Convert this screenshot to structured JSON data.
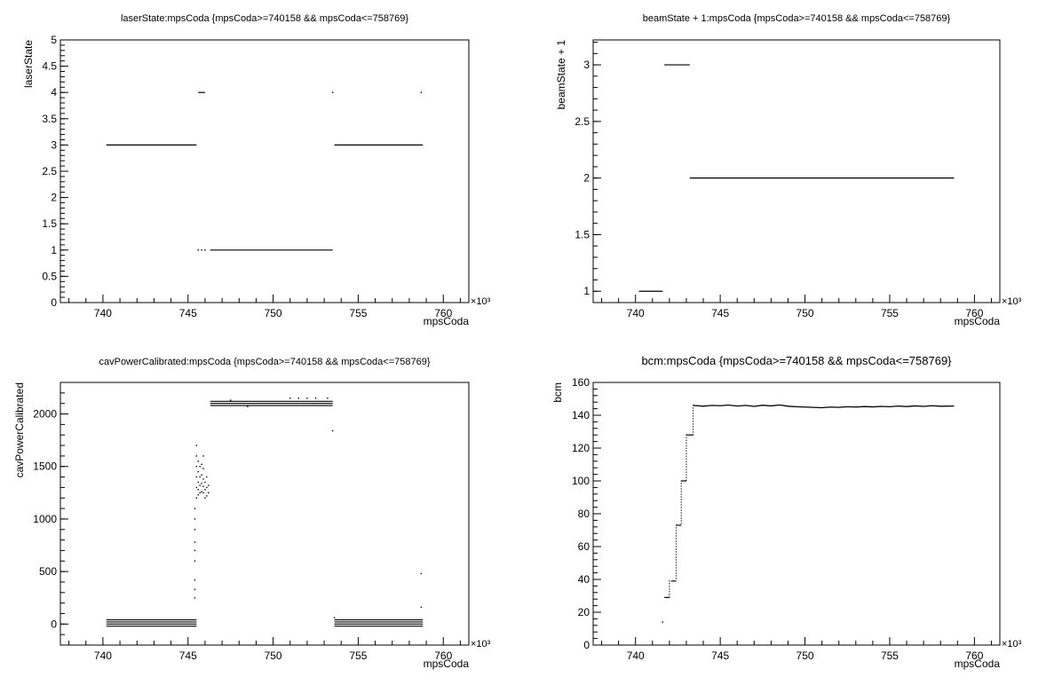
{
  "chart_data": [
    {
      "type": "scatter",
      "title": "laserState:mpsCoda {mpsCoda>=740158 && mpsCoda<=758769}",
      "xlabel": "mpsCoda",
      "ylabel": "laserState",
      "x_multiplier_label": "×10³",
      "xlim": [
        737.5,
        761.5
      ],
      "ylim": [
        0,
        5
      ],
      "xticks": [
        "740",
        "745",
        "750",
        "755",
        "760"
      ],
      "yticks": [
        "0",
        "0.5",
        "1",
        "1.5",
        "2",
        "2.5",
        "3",
        "3.5",
        "4",
        "4.5",
        "5"
      ],
      "segments": [
        {
          "x0": 740.2,
          "x1": 745.5,
          "y": 3
        },
        {
          "x0": 745.6,
          "x1": 746.0,
          "y": 4
        },
        {
          "x0": 746.3,
          "x1": 753.5,
          "y": 1
        },
        {
          "x0": 753.6,
          "x1": 758.8,
          "y": 3
        }
      ],
      "points": [
        {
          "x": 745.6,
          "y": 1
        },
        {
          "x": 745.8,
          "y": 1
        },
        {
          "x": 746.0,
          "y": 1
        },
        {
          "x": 753.5,
          "y": 4
        },
        {
          "x": 758.7,
          "y": 4
        }
      ]
    },
    {
      "type": "scatter",
      "title": "beamState + 1:mpsCoda {mpsCoda>=740158 && mpsCoda<=758769}",
      "xlabel": "mpsCoda",
      "ylabel": "beamState + 1",
      "x_multiplier_label": "×10³",
      "xlim": [
        737.5,
        761.5
      ],
      "ylim": [
        0.9,
        3.22
      ],
      "xticks": [
        "740",
        "745",
        "750",
        "755",
        "760"
      ],
      "yticks": [
        "1",
        "1.5",
        "2",
        "2.5",
        "3"
      ],
      "segments": [
        {
          "x0": 740.2,
          "x1": 741.6,
          "y": 1
        },
        {
          "x0": 741.7,
          "x1": 743.2,
          "y": 3
        },
        {
          "x0": 743.2,
          "x1": 758.8,
          "y": 2
        }
      ],
      "points": []
    },
    {
      "type": "scatter",
      "title": "cavPowerCalibrated:mpsCoda {mpsCoda>=740158 && mpsCoda<=758769}",
      "xlabel": "mpsCoda",
      "ylabel": "cavPowerCalibrated",
      "x_multiplier_label": "×10³",
      "xlim": [
        737.5,
        761.5
      ],
      "ylim": [
        -200,
        2300
      ],
      "xticks": [
        "740",
        "745",
        "750",
        "755",
        "760"
      ],
      "yticks": [
        "0",
        "500",
        "1000",
        "1500",
        "2000"
      ],
      "segments": [
        {
          "x0": 740.2,
          "x1": 745.5,
          "y": 40
        },
        {
          "x0": 740.2,
          "x1": 745.5,
          "y": 20
        },
        {
          "x0": 740.2,
          "x1": 745.5,
          "y": 0
        },
        {
          "x0": 740.2,
          "x1": 745.5,
          "y": -20
        },
        {
          "x0": 746.3,
          "x1": 753.5,
          "y": 2120
        },
        {
          "x0": 746.3,
          "x1": 753.5,
          "y": 2100
        },
        {
          "x0": 746.3,
          "x1": 753.5,
          "y": 2080
        },
        {
          "x0": 753.6,
          "x1": 758.8,
          "y": 40
        },
        {
          "x0": 753.6,
          "x1": 758.8,
          "y": 20
        },
        {
          "x0": 753.6,
          "x1": 758.8,
          "y": 0
        },
        {
          "x0": 753.6,
          "x1": 758.8,
          "y": -20
        }
      ],
      "points": [
        {
          "x": 745.4,
          "y": 250
        },
        {
          "x": 745.4,
          "y": 330
        },
        {
          "x": 745.4,
          "y": 420
        },
        {
          "x": 745.4,
          "y": 600
        },
        {
          "x": 745.4,
          "y": 700
        },
        {
          "x": 745.4,
          "y": 780
        },
        {
          "x": 745.4,
          "y": 900
        },
        {
          "x": 745.4,
          "y": 1000
        },
        {
          "x": 745.4,
          "y": 1100
        },
        {
          "x": 745.5,
          "y": 1200
        },
        {
          "x": 745.5,
          "y": 1300
        },
        {
          "x": 745.5,
          "y": 1400
        },
        {
          "x": 745.5,
          "y": 1500
        },
        {
          "x": 745.5,
          "y": 1600
        },
        {
          "x": 745.5,
          "y": 1700
        },
        {
          "x": 745.6,
          "y": 1230
        },
        {
          "x": 745.6,
          "y": 1280
        },
        {
          "x": 745.6,
          "y": 1350
        },
        {
          "x": 745.6,
          "y": 1450
        },
        {
          "x": 745.6,
          "y": 1550
        },
        {
          "x": 745.7,
          "y": 1250
        },
        {
          "x": 745.7,
          "y": 1320
        },
        {
          "x": 745.7,
          "y": 1400
        },
        {
          "x": 745.7,
          "y": 1500
        },
        {
          "x": 745.8,
          "y": 1260
        },
        {
          "x": 745.8,
          "y": 1340
        },
        {
          "x": 745.8,
          "y": 1420
        },
        {
          "x": 745.8,
          "y": 1520
        },
        {
          "x": 745.9,
          "y": 1250
        },
        {
          "x": 745.9,
          "y": 1310
        },
        {
          "x": 745.9,
          "y": 1380
        },
        {
          "x": 745.9,
          "y": 1480
        },
        {
          "x": 745.9,
          "y": 1600
        },
        {
          "x": 746.0,
          "y": 1200
        },
        {
          "x": 746.0,
          "y": 1280
        },
        {
          "x": 746.0,
          "y": 1350
        },
        {
          "x": 746.1,
          "y": 1220
        },
        {
          "x": 746.1,
          "y": 1300
        },
        {
          "x": 746.1,
          "y": 1400
        },
        {
          "x": 746.2,
          "y": 1250
        },
        {
          "x": 746.2,
          "y": 1320
        },
        {
          "x": 747.5,
          "y": 2130
        },
        {
          "x": 748.5,
          "y": 2070
        },
        {
          "x": 751.0,
          "y": 2150
        },
        {
          "x": 751.5,
          "y": 2150
        },
        {
          "x": 752.0,
          "y": 2150
        },
        {
          "x": 752.5,
          "y": 2150
        },
        {
          "x": 753.2,
          "y": 2150
        },
        {
          "x": 753.5,
          "y": 1840
        },
        {
          "x": 753.6,
          "y": 60
        },
        {
          "x": 758.7,
          "y": 480
        },
        {
          "x": 758.7,
          "y": 160
        }
      ]
    },
    {
      "type": "scatter",
      "title": "bcm:mpsCoda {mpsCoda>=740158 && mpsCoda<=758769}",
      "xlabel": "mpsCoda",
      "ylabel": "bcm",
      "x_multiplier_label": "×10³",
      "xlim": [
        737.5,
        761.5
      ],
      "ylim": [
        0,
        160
      ],
      "xticks": [
        "740",
        "745",
        "750",
        "755",
        "760"
      ],
      "yticks": [
        "0",
        "20",
        "40",
        "60",
        "80",
        "100",
        "120",
        "140",
        "160"
      ],
      "segments": [
        {
          "x0": 741.7,
          "x1": 742.0,
          "y": 29
        },
        {
          "x0": 742.1,
          "x1": 742.4,
          "y": 39
        },
        {
          "x0": 742.4,
          "x1": 742.7,
          "y": 73
        },
        {
          "x0": 742.7,
          "x1": 743.0,
          "y": 100
        },
        {
          "x0": 743.0,
          "x1": 743.4,
          "y": 128
        }
      ],
      "points": [
        {
          "x": 741.6,
          "y": 14
        }
      ],
      "series_line": {
        "x": [
          743.4,
          744.0,
          744.5,
          745.0,
          745.5,
          746.0,
          746.5,
          747.0,
          747.5,
          748.0,
          748.5,
          749.0,
          749.5,
          750.0,
          750.5,
          751.0,
          751.5,
          752.0,
          752.5,
          753.0,
          753.5,
          754.0,
          754.5,
          755.0,
          755.5,
          756.0,
          756.5,
          757.0,
          757.5,
          758.0,
          758.8
        ],
        "y": [
          146,
          145.5,
          146,
          145.8,
          146.2,
          145.6,
          146,
          145.4,
          146.1,
          145.7,
          146.3,
          145.5,
          145.2,
          145,
          144.8,
          144.6,
          145,
          144.8,
          145.2,
          145,
          145.3,
          145.1,
          145.4,
          145.2,
          145.6,
          145.3,
          145.7,
          145.4,
          145.8,
          145.5,
          145.6
        ]
      },
      "step_points": [
        {
          "x": 742.0,
          "y0": 29,
          "y1": 39
        },
        {
          "x": 742.4,
          "y0": 39,
          "y1": 73
        },
        {
          "x": 742.7,
          "y0": 73,
          "y1": 100
        },
        {
          "x": 743.0,
          "y0": 100,
          "y1": 128
        },
        {
          "x": 743.4,
          "y0": 128,
          "y1": 146
        }
      ]
    }
  ]
}
